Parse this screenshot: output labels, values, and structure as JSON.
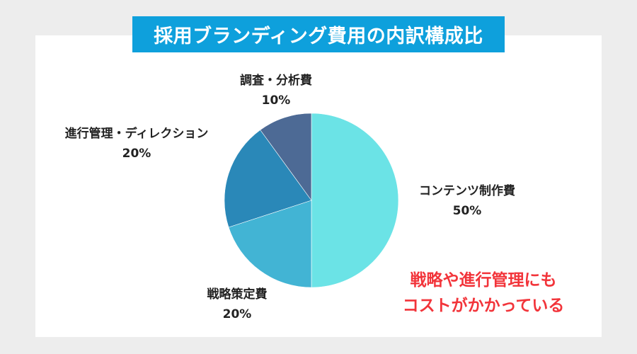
{
  "title": "採用ブランディング費用の内訳構成比",
  "chart_data": {
    "type": "pie",
    "title": "採用ブランディング費用の内訳構成比",
    "start_angle": "12 o'clock, clockwise",
    "slices": [
      {
        "label": "コンテンツ制作費",
        "value": 50,
        "color": "#6be3e6"
      },
      {
        "label": "戦略策定費",
        "value": 20,
        "color": "#42b4d4"
      },
      {
        "label": "進行管理・ディレクション",
        "value": 20,
        "color": "#2a88b8"
      },
      {
        "label": "調査・分析費",
        "value": 10,
        "color": "#4d6a95"
      }
    ],
    "annotation": "戦略や進行管理にもコストがかかっている"
  },
  "labels": {
    "research": {
      "name": "調査・分析費",
      "pct": "10%"
    },
    "direction": {
      "name": "進行管理・ディレクション",
      "pct": "20%"
    },
    "content": {
      "name": "コンテンツ制作費",
      "pct": "50%"
    },
    "strategy": {
      "name": "戦略策定費",
      "pct": "20%"
    }
  },
  "note": {
    "line1": "戦略や進行管理にも",
    "line2": "コストがかかっている"
  }
}
